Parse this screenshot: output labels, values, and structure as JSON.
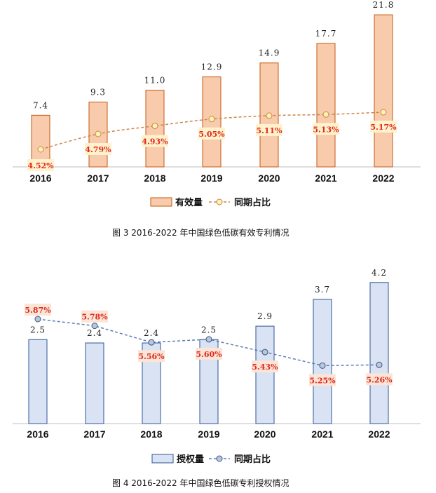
{
  "chart_data": [
    {
      "type": "bar",
      "categories": [
        "2016",
        "2017",
        "2018",
        "2019",
        "2020",
        "2021",
        "2022"
      ],
      "series": [
        {
          "name": "有效量",
          "type": "bar",
          "values": [
            7.4,
            9.3,
            11.0,
            12.9,
            14.9,
            17.7,
            21.8
          ],
          "labels": [
            "7.4",
            "9.3",
            "11.0",
            "12.9",
            "14.9",
            "17.7",
            "21.8"
          ]
        },
        {
          "name": "同期占比",
          "type": "line",
          "values": [
            4.52,
            4.79,
            4.93,
            5.05,
            5.11,
            5.13,
            5.17
          ],
          "labels": [
            "4.52%",
            "4.79%",
            "4.93%",
            "5.05%",
            "5.11%",
            "5.13%",
            "5.17%"
          ]
        }
      ],
      "bar_fill": "#f8cbad",
      "bar_stroke": "#c55a11",
      "line_color": "#c9874b",
      "marker_fill": "#fff2b3",
      "label_box_fill": "#fff2cc",
      "legend_placement": "bottom",
      "caption": "图  3 2016-2022 年中国绿色低碳有效专利情况"
    },
    {
      "type": "bar",
      "categories": [
        "2016",
        "2017",
        "2018",
        "2019",
        "2020",
        "2021",
        "2022"
      ],
      "series": [
        {
          "name": "授权量",
          "type": "bar",
          "values": [
            2.5,
            2.4,
            2.4,
            2.5,
            2.9,
            3.7,
            4.2
          ],
          "labels": [
            "2.5",
            "2.4",
            "2.4",
            "2.5",
            "2.9",
            "3.7",
            "4.2"
          ]
        },
        {
          "name": "同期占比",
          "type": "line",
          "values": [
            5.87,
            5.78,
            5.56,
            5.6,
            5.43,
            5.25,
            5.26
          ],
          "labels": [
            "5.87%",
            "5.78%",
            "5.56%",
            "5.60%",
            "5.43%",
            "5.25%",
            "5.26%"
          ]
        }
      ],
      "bar_fill": "#dae3f3",
      "bar_stroke": "#2f5597",
      "line_color": "#5a7fb5",
      "marker_fill": "#b4c7e7",
      "label_box_fill": "#fbe5d6",
      "legend_placement": "bottom",
      "caption": "图  4 2016-2022 年中国绿色低碳专利授权情况"
    }
  ]
}
